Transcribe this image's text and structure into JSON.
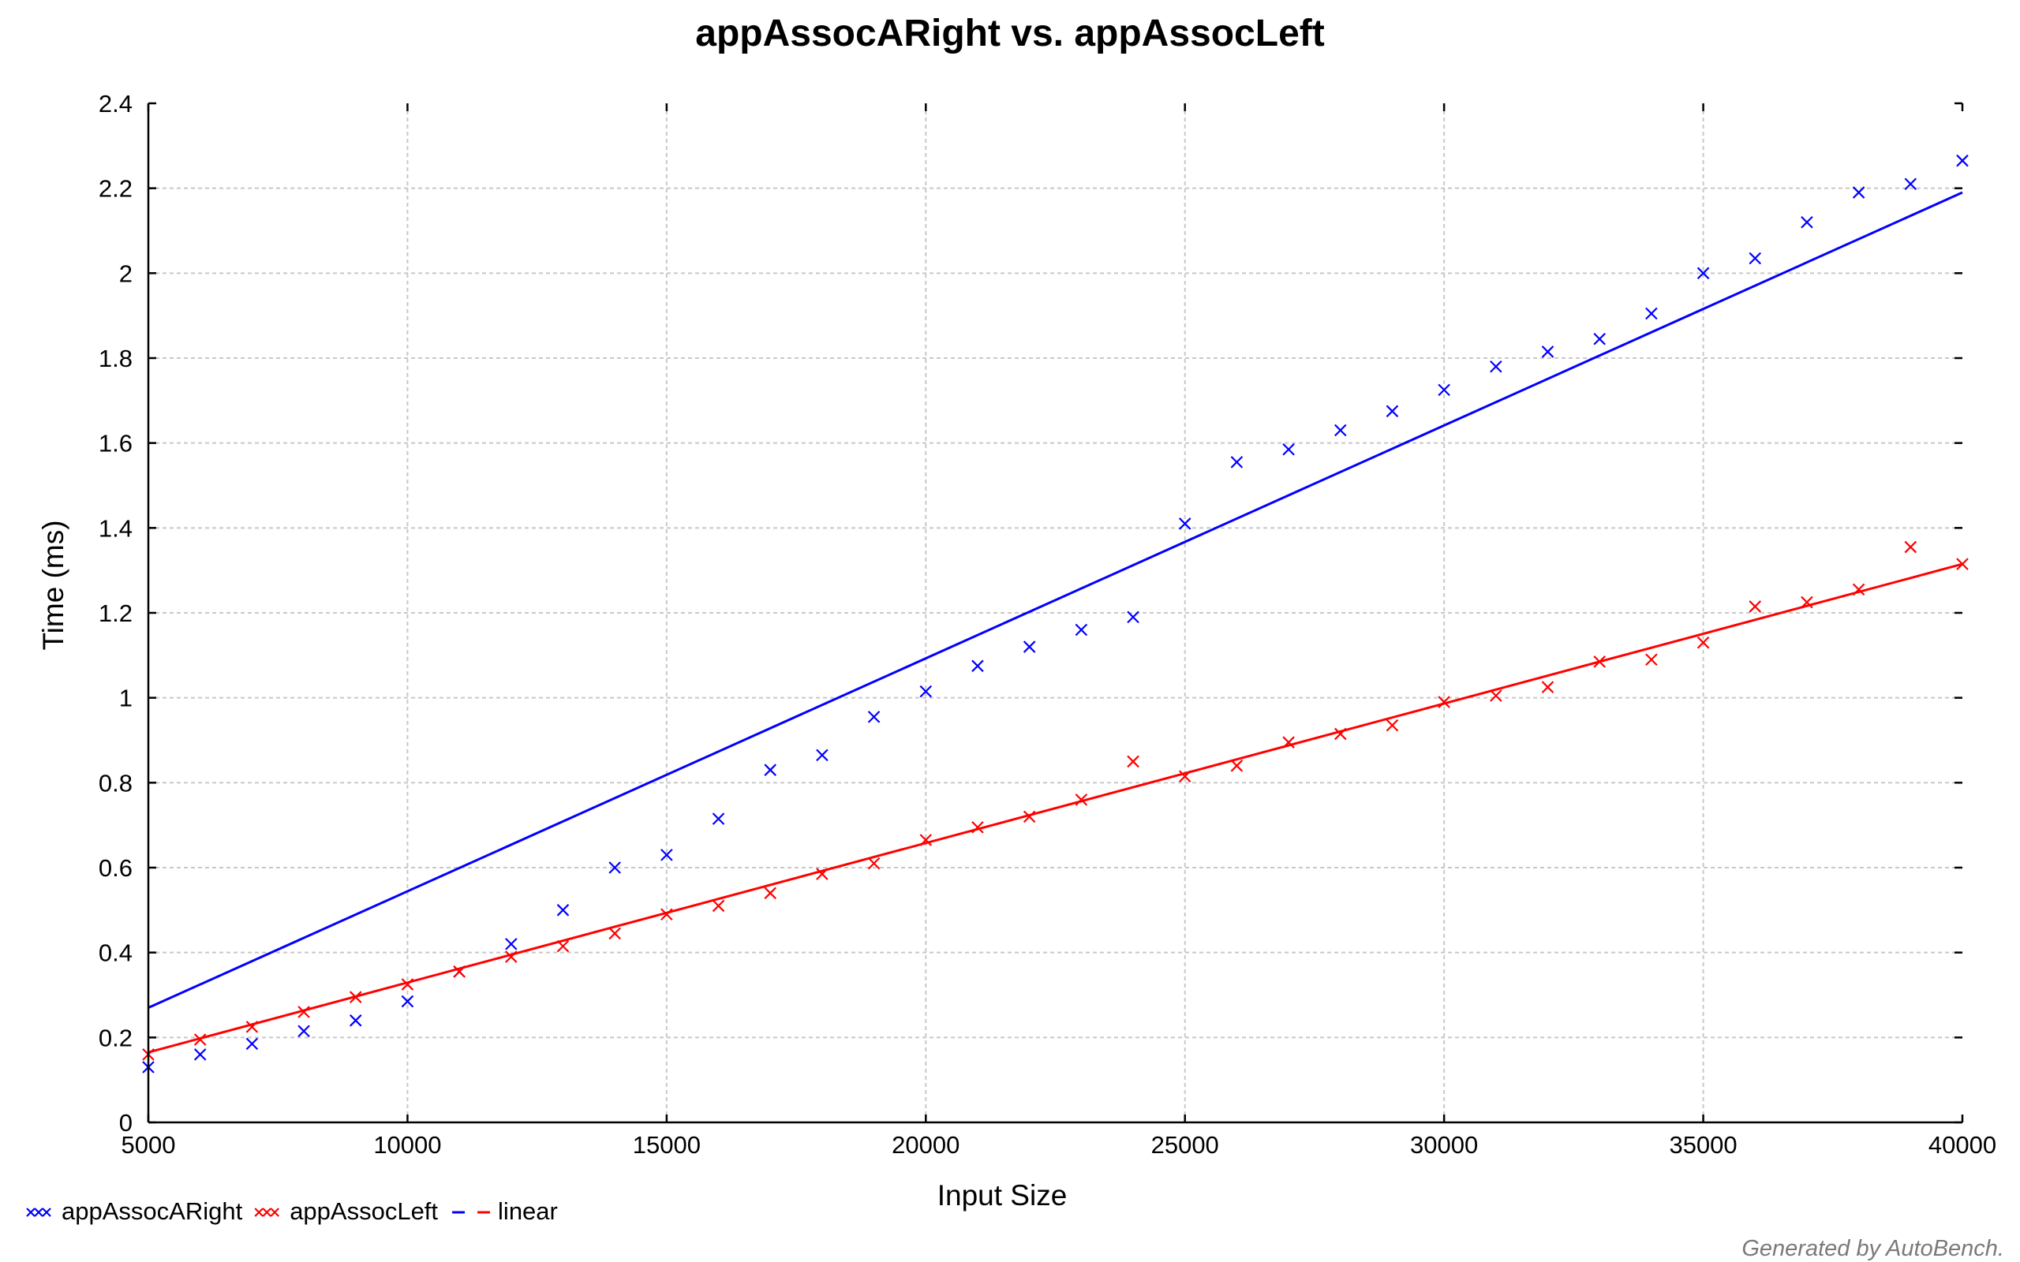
{
  "chart_data": {
    "type": "scatter",
    "title": "appAssocARight vs. appAssocLeft",
    "xlabel": "Input Size",
    "ylabel": "Time (ms)",
    "xlim": [
      5000,
      40000
    ],
    "ylim": [
      0,
      2.4
    ],
    "xticks": [
      "5000",
      "10000",
      "15000",
      "20000",
      "25000",
      "30000",
      "35000",
      "40000"
    ],
    "yticks": [
      "0",
      "0.2",
      "0.4",
      "0.6",
      "0.8",
      "1",
      "1.2",
      "1.4",
      "1.6",
      "1.8",
      "2",
      "2.2",
      "2.4"
    ],
    "grid": true,
    "legend_position": "bottom-left",
    "x": [
      5000,
      6000,
      7000,
      8000,
      9000,
      10000,
      11000,
      12000,
      13000,
      14000,
      15000,
      16000,
      17000,
      18000,
      19000,
      20000,
      21000,
      22000,
      23000,
      24000,
      25000,
      26000,
      27000,
      28000,
      29000,
      30000,
      31000,
      32000,
      33000,
      34000,
      35000,
      36000,
      37000,
      38000,
      39000,
      40000
    ],
    "series": [
      {
        "name": "appAssocARight",
        "color": "#0000ff",
        "marker": "x",
        "values": [
          0.13,
          0.16,
          0.185,
          0.215,
          0.24,
          0.285,
          0.355,
          0.42,
          0.5,
          0.6,
          0.63,
          0.715,
          0.83,
          0.865,
          0.955,
          1.015,
          1.075,
          1.12,
          1.16,
          1.19,
          1.41,
          1.555,
          1.585,
          1.63,
          1.675,
          1.725,
          1.78,
          1.815,
          1.845,
          1.905,
          2.0,
          2.035,
          2.12,
          2.19,
          2.21,
          2.265
        ]
      },
      {
        "name": "appAssocLeft",
        "color": "#ff0000",
        "marker": "x",
        "values": [
          0.16,
          0.195,
          0.225,
          0.26,
          0.295,
          0.325,
          0.355,
          0.39,
          0.415,
          0.445,
          0.49,
          0.51,
          0.54,
          0.585,
          0.61,
          0.665,
          0.695,
          0.72,
          0.76,
          0.85,
          0.815,
          0.84,
          0.895,
          0.915,
          0.935,
          0.99,
          1.005,
          1.025,
          1.085,
          1.09,
          1.13,
          1.215,
          1.225,
          1.255,
          1.355,
          1.315
        ]
      }
    ],
    "fit_lines": [
      {
        "series": "appAssocARight",
        "type": "linear",
        "color": "#0000ff",
        "x": [
          5000,
          40000
        ],
        "y": [
          0.27,
          2.19
        ]
      },
      {
        "series": "appAssocLeft",
        "type": "linear",
        "color": "#ff0000",
        "x": [
          5000,
          40000
        ],
        "y": [
          0.165,
          1.315
        ]
      }
    ],
    "legend": [
      {
        "label": "appAssocARight",
        "symbol": "xxx",
        "color": "#0000ff"
      },
      {
        "label": "appAssocLeft",
        "symbol": "xxx",
        "color": "#ff0000"
      },
      {
        "label": "linear",
        "symbol": "dash-pair",
        "colors": [
          "#0000ff",
          "#ff0000"
        ]
      }
    ]
  },
  "footer": {
    "text": "Generated by AutoBench."
  }
}
